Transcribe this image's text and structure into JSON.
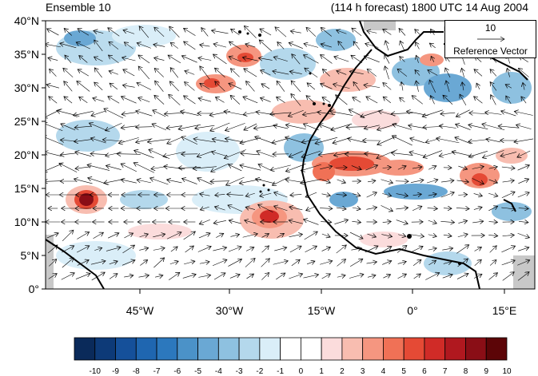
{
  "header": {
    "title_left": "Ensemble 10",
    "title_right": "(114 h forecast) 1800 UTC 14 Aug 2004"
  },
  "map": {
    "lat_ticks": [
      "40°N",
      "35°N",
      "30°N",
      "25°N",
      "20°N",
      "15°N",
      "10°N",
      "5°N",
      "0°"
    ],
    "lon_ticks": [
      "45°W",
      "30°W",
      "15°W",
      "0°",
      "15°E"
    ],
    "reference_vector": {
      "value": "10",
      "label": "Reference Vector"
    }
  },
  "colorbar": {
    "labels": [
      "-10",
      "-9",
      "-8",
      "-7",
      "-6",
      "-5",
      "-4",
      "-3",
      "-2",
      "-1",
      "0",
      "1",
      "2",
      "3",
      "4",
      "5",
      "6",
      "7",
      "8",
      "9",
      "10"
    ],
    "colors": [
      "#0a2a5a",
      "#0d3a78",
      "#15509a",
      "#1f66b0",
      "#2c78bd",
      "#4b92c8",
      "#6aa8d4",
      "#8ec1e0",
      "#b4d8ec",
      "#daeef8",
      "#ffffff",
      "#ffffff",
      "#fbdcdc",
      "#f8bdb0",
      "#f59680",
      "#f07156",
      "#e54a35",
      "#d02b27",
      "#b0181f",
      "#8a0e16",
      "#5c0507"
    ]
  },
  "colors": {
    "land_boundary": "#000000",
    "missing": "#c8c8c8",
    "vector": "#000000"
  }
}
